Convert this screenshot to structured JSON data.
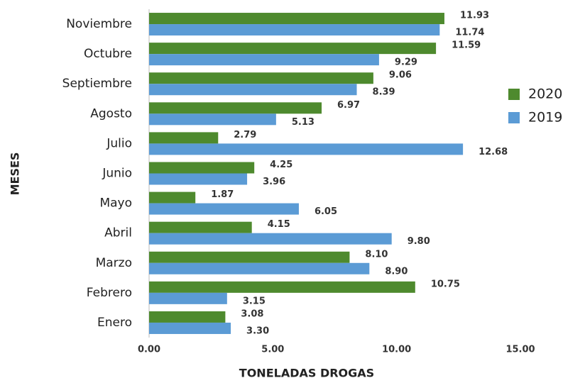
{
  "chart_data": {
    "type": "hbar",
    "xlabel": "TONELADAS DROGAS",
    "ylabel": "MESES",
    "categories": [
      "Enero",
      "Febrero",
      "Marzo",
      "Abril",
      "Mayo",
      "Junio",
      "Julio",
      "Agosto",
      "Septiembre",
      "Octubre",
      "Noviembre"
    ],
    "series": [
      {
        "name": "2020",
        "color": "#4e8a2e",
        "values": [
          3.08,
          10.75,
          8.1,
          4.15,
          1.87,
          4.25,
          2.79,
          6.97,
          9.06,
          11.59,
          11.93
        ],
        "value_labels": [
          "3.08",
          "10.75",
          "8.10",
          "4.15",
          "1.87",
          "4.25",
          "2.79",
          "6.97",
          "9.06",
          "11.59",
          "11.93"
        ]
      },
      {
        "name": "2019",
        "color": "#5b9bd5",
        "values": [
          3.3,
          3.15,
          8.9,
          9.8,
          6.05,
          3.96,
          12.68,
          5.13,
          8.39,
          9.29,
          11.74
        ],
        "value_labels": [
          "3.30",
          "3.15",
          "8.90",
          "9.80",
          "6.05",
          "3.96",
          "12.68",
          "5.13",
          "8.39",
          "9.29",
          "11.74"
        ]
      }
    ],
    "xlim": [
      0,
      15
    ],
    "xticks": [
      {
        "value": 0,
        "label": "0.00"
      },
      {
        "value": 5,
        "label": "5.00"
      },
      {
        "value": 10,
        "label": "10.00"
      },
      {
        "value": 15,
        "label": "15.00"
      }
    ],
    "legend": "right"
  }
}
